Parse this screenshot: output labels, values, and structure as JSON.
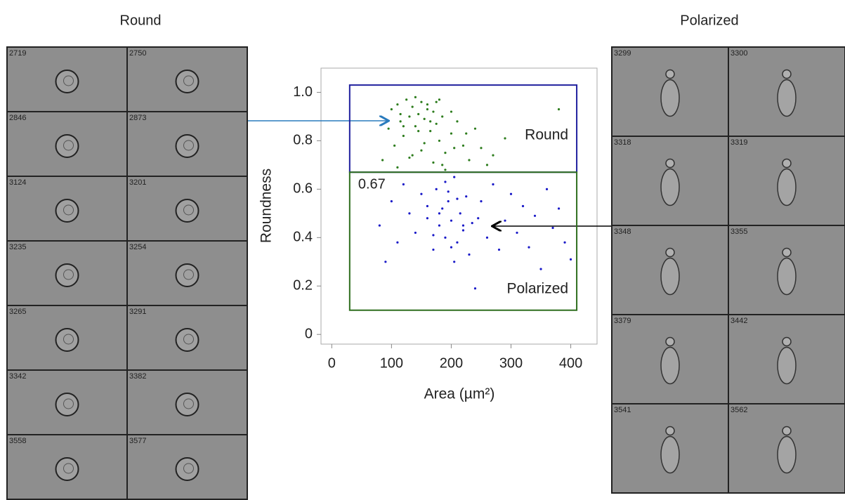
{
  "chart_data": {
    "type": "scatter",
    "xlabel": "Area (µm²)",
    "ylabel": "Roundness",
    "xlim": [
      -18,
      444
    ],
    "ylim": [
      -0.04,
      1.1
    ],
    "xticks": [
      0,
      100,
      200,
      300,
      400
    ],
    "yticks": [
      0,
      0.2,
      0.4,
      0.6,
      0.8,
      {
        "value": 1,
        "label": "1.0"
      }
    ],
    "series": [
      {
        "color": "#2e7d1e",
        "x": [
          85,
          95,
          100,
          105,
          110,
          115,
          120,
          125,
          130,
          135,
          140,
          145,
          150,
          155,
          160,
          165,
          170,
          175,
          180,
          185,
          190,
          200,
          210,
          220,
          230,
          240,
          250,
          260,
          270,
          290,
          110,
          130,
          150,
          170,
          190,
          140,
          160,
          180,
          120,
          200,
          225,
          155,
          135,
          165,
          175,
          115,
          145,
          205,
          185,
          380
        ],
        "values": [
          0.72,
          0.85,
          0.93,
          0.78,
          0.95,
          0.88,
          0.82,
          0.97,
          0.9,
          0.94,
          0.86,
          0.91,
          0.96,
          0.89,
          0.93,
          0.84,
          0.92,
          0.87,
          0.8,
          0.9,
          0.75,
          0.83,
          0.88,
          0.78,
          0.72,
          0.85,
          0.77,
          0.7,
          0.74,
          0.81,
          0.69,
          0.73,
          0.76,
          0.71,
          0.68,
          0.98,
          0.95,
          0.97,
          0.86,
          0.92,
          0.83,
          0.79,
          0.74,
          0.88,
          0.96,
          0.91,
          0.84,
          0.77,
          0.7,
          0.93
        ]
      },
      {
        "color": "#1a1ac8",
        "x": [
          80,
          90,
          100,
          110,
          120,
          130,
          140,
          150,
          160,
          170,
          175,
          180,
          185,
          190,
          195,
          200,
          205,
          210,
          215,
          220,
          225,
          230,
          235,
          240,
          250,
          260,
          270,
          280,
          290,
          300,
          310,
          320,
          330,
          340,
          350,
          360,
          370,
          380,
          390,
          400,
          170,
          190,
          210,
          200,
          180,
          220,
          160,
          205,
          195,
          245
        ],
        "values": [
          0.45,
          0.3,
          0.55,
          0.38,
          0.62,
          0.5,
          0.42,
          0.58,
          0.48,
          0.35,
          0.6,
          0.45,
          0.52,
          0.4,
          0.55,
          0.47,
          0.65,
          0.38,
          0.5,
          0.43,
          0.57,
          0.33,
          0.46,
          0.19,
          0.55,
          0.4,
          0.62,
          0.35,
          0.47,
          0.58,
          0.42,
          0.53,
          0.36,
          0.49,
          0.27,
          0.6,
          0.44,
          0.52,
          0.38,
          0.31,
          0.41,
          0.63,
          0.56,
          0.36,
          0.5,
          0.45,
          0.53,
          0.3,
          0.59,
          0.48
        ]
      }
    ],
    "gates": [
      {
        "label": "Round",
        "color": "#1f1f9e",
        "x": [
          30,
          410
        ],
        "y": [
          0.67,
          1.03
        ]
      },
      {
        "label": "Polarized",
        "color": "#2e6e1e",
        "x": [
          30,
          410
        ],
        "y": [
          0.1,
          0.67
        ]
      }
    ],
    "threshold": {
      "value": 0.67,
      "label": "0.67"
    }
  },
  "panels": [
    {
      "title": "Round",
      "cells": [
        "2719",
        "2750",
        "2846",
        "2873",
        "3124",
        "3201",
        "3235",
        "3254",
        "3265",
        "3291",
        "3342",
        "3382",
        "3558",
        "3577"
      ]
    },
    {
      "title": "Polarized",
      "cells": [
        "3299",
        "3300",
        "3318",
        "3319",
        "3348",
        "3355",
        "3379",
        "3442",
        "3541",
        "3562"
      ]
    }
  ]
}
